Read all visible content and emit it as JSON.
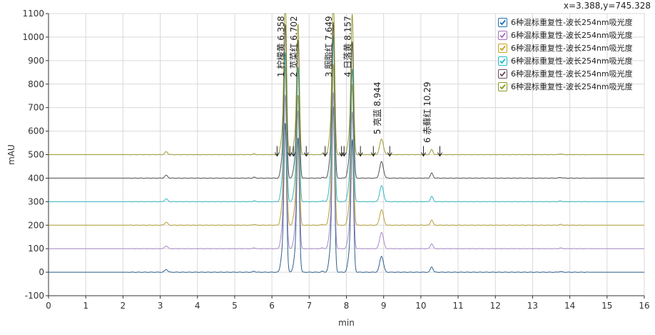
{
  "coord_readout": "x=3.388,y=745.328",
  "chart_data": {
    "type": "line",
    "xlabel": "min",
    "ylabel": "mAU",
    "xlim": [
      0,
      16
    ],
    "ylim": [
      -100,
      1100
    ],
    "xticks": [
      0,
      1,
      2,
      3,
      4,
      5,
      6,
      7,
      8,
      9,
      10,
      11,
      12,
      13,
      14,
      15,
      16
    ],
    "yticks": [
      -100,
      0,
      100,
      200,
      300,
      400,
      500,
      600,
      700,
      800,
      900,
      1000,
      1100
    ],
    "grid": true,
    "legend_position": "top-right",
    "peaks": [
      {
        "label": "1 柠檬黄 6.358",
        "rt": 6.358,
        "height": 640,
        "width": 0.035
      },
      {
        "label": "2 苋菜红 6.702",
        "rt": 6.702,
        "height": 560,
        "width": 0.035
      },
      {
        "label": "3 胭脂红 7.649",
        "rt": 7.649,
        "height": 670,
        "width": 0.035
      },
      {
        "label": "4 日落黄 8.157",
        "rt": 8.157,
        "height": 570,
        "width": 0.035
      },
      {
        "label": "5 亮蓝 8.944",
        "rt": 8.944,
        "height": 68,
        "width": 0.05
      },
      {
        "label": "6 赤藓红 10.29",
        "rt": 10.29,
        "height": 22,
        "width": 0.035
      }
    ],
    "minor_peaks": [
      {
        "rt": 3.16,
        "height": 12,
        "width": 0.04
      },
      {
        "rt": 5.52,
        "height": 4,
        "width": 0.03
      },
      {
        "rt": 7.36,
        "height": 4,
        "width": 0.03
      },
      {
        "rt": 13.75,
        "height": 3,
        "width": 0.04
      }
    ],
    "series": [
      {
        "name": "6种混标重复性-波长254nm吸光度",
        "offset": 0,
        "color": "#2e5f8f",
        "checkbox": "#1f6fb3"
      },
      {
        "name": "6种混标重复性-波长254nm吸光度",
        "offset": 100,
        "color": "#a888c8",
        "checkbox": "#a56cc0"
      },
      {
        "name": "6种混标重复性-波长254nm吸光度",
        "offset": 200,
        "color": "#b7a038",
        "checkbox": "#c8a020"
      },
      {
        "name": "6种混标重复性-波长254nm吸光度",
        "offset": 300,
        "color": "#35b8c4",
        "checkbox": "#20b8c8"
      },
      {
        "name": "6种混标重复性-波长254nm吸光度",
        "offset": 400,
        "color": "#555055",
        "checkbox": "#6a4a5a"
      },
      {
        "name": "6种混标重复性-波长254nm吸光度",
        "offset": 500,
        "color": "#999930",
        "checkbox": "#8a9a20"
      }
    ]
  }
}
